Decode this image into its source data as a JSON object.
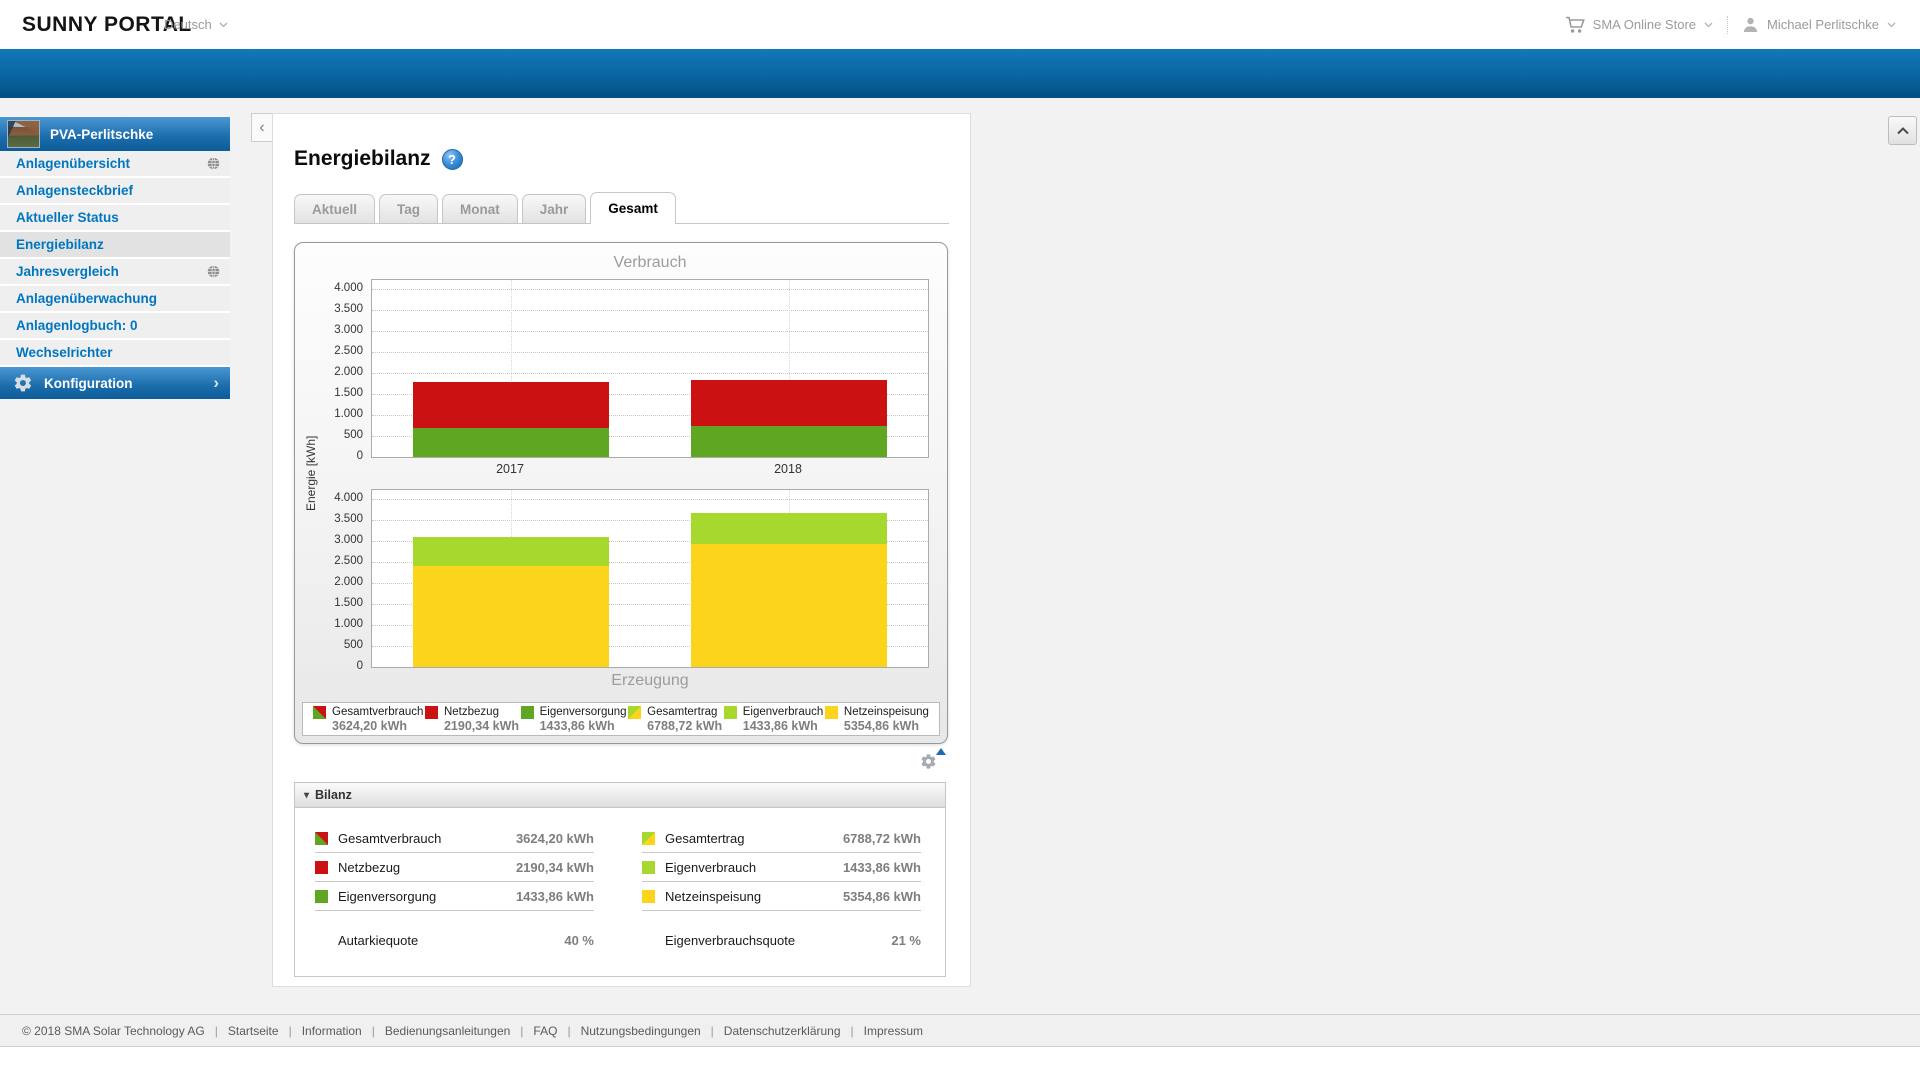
{
  "topbar": {
    "logo": "SUNNY PORTAL",
    "language": "Deutsch",
    "store": "SMA Online Store",
    "user": "Michael Perlitschke"
  },
  "sidebar": {
    "plant": "PVA-Perlitschke",
    "items": [
      {
        "label": "Anlagenübersicht",
        "globe": true,
        "active": false
      },
      {
        "label": "Anlagensteckbrief",
        "globe": false,
        "active": false
      },
      {
        "label": "Aktueller Status",
        "globe": false,
        "active": false
      },
      {
        "label": "Energiebilanz",
        "globe": false,
        "active": true
      },
      {
        "label": "Jahresvergleich",
        "globe": true,
        "active": false
      },
      {
        "label": "Anlagenüberwachung",
        "globe": false,
        "active": false
      },
      {
        "label": "Anlagenlogbuch: 0",
        "globe": false,
        "active": false
      },
      {
        "label": "Wechselrichter",
        "globe": false,
        "active": false
      }
    ],
    "config_label": "Konfiguration"
  },
  "page": {
    "title": "Energiebilanz",
    "tabs": [
      {
        "label": "Aktuell",
        "active": false
      },
      {
        "label": "Tag",
        "active": false
      },
      {
        "label": "Monat",
        "active": false
      },
      {
        "label": "Jahr",
        "active": false
      },
      {
        "label": "Gesamt",
        "active": true
      }
    ]
  },
  "colors": {
    "red": "#cc1112",
    "green": "#5fa623",
    "lightgreen": "#a6d82d",
    "yellow": "#fbd41b",
    "banner_blue": "#0a65a2",
    "menu_blue": "#0076c0"
  },
  "chart_data": {
    "type": "bar",
    "stacked": true,
    "categories": [
      "2017",
      "2018"
    ],
    "ylabel": "Energie [kWh]",
    "ylim": [
      0,
      4000
    ],
    "ytick_values": [
      0,
      500,
      1000,
      1500,
      2000,
      2500,
      3000,
      3500,
      4000
    ],
    "ytick_labels": [
      "0",
      "500",
      "1.000",
      "1.500",
      "2.000",
      "2.500",
      "3.000",
      "3.500",
      "4.000"
    ],
    "grid": true,
    "panels": [
      {
        "title": "Verbrauch",
        "series": [
          {
            "name": "Eigenversorgung",
            "color": "green",
            "values": [
              695,
              739
            ]
          },
          {
            "name": "Netzbezug",
            "color": "red",
            "values": [
              1090,
              1100
            ]
          }
        ]
      },
      {
        "title": "Erzeugung",
        "series": [
          {
            "name": "Netzeinspeisung",
            "color": "yellow",
            "values": [
              2415,
              2940
            ]
          },
          {
            "name": "Eigenverbrauch",
            "color": "lightgreen",
            "values": [
              695,
              739
            ]
          }
        ]
      }
    ],
    "legend_position": "bottom",
    "legend": [
      {
        "label": "Gesamtverbrauch",
        "value": "3624,20 kWh",
        "swatch": "red_green"
      },
      {
        "label": "Netzbezug",
        "value": "2190,34 kWh",
        "swatch": "red"
      },
      {
        "label": "Eigenversorgung",
        "value": "1433,86 kWh",
        "swatch": "green"
      },
      {
        "label": "Gesamtertrag",
        "value": "6788,72 kWh",
        "swatch": "lightgreen_yellow"
      },
      {
        "label": "Eigenverbrauch",
        "value": "1433,86 kWh",
        "swatch": "lightgreen"
      },
      {
        "label": "Netzeinspeisung",
        "value": "5354,86 kWh",
        "swatch": "yellow"
      }
    ]
  },
  "bilanz": {
    "title": "Bilanz",
    "left": {
      "rows": [
        {
          "label": "Gesamtverbrauch",
          "value": "3624,20 kWh",
          "swatch": "red_green"
        },
        {
          "label": "Netzbezug",
          "value": "2190,34 kWh",
          "swatch": "red"
        },
        {
          "label": "Eigenversorgung",
          "value": "1433,86 kWh",
          "swatch": "green"
        }
      ],
      "quote_label": "Autarkiequote",
      "quote_value": "40 %"
    },
    "right": {
      "rows": [
        {
          "label": "Gesamtertrag",
          "value": "6788,72 kWh",
          "swatch": "lightgreen_yellow"
        },
        {
          "label": "Eigenverbrauch",
          "value": "1433,86 kWh",
          "swatch": "lightgreen"
        },
        {
          "label": "Netzeinspeisung",
          "value": "5354,86 kWh",
          "swatch": "yellow"
        }
      ],
      "quote_label": "Eigenverbrauchsquote",
      "quote_value": "21 %"
    }
  },
  "footer": {
    "copyright": "© 2018 SMA Solar Technology AG",
    "links": [
      "Startseite",
      "Information",
      "Bedienungsanleitungen",
      "FAQ",
      "Nutzungsbedingungen",
      "Datenschutzerklärung",
      "Impressum"
    ]
  }
}
